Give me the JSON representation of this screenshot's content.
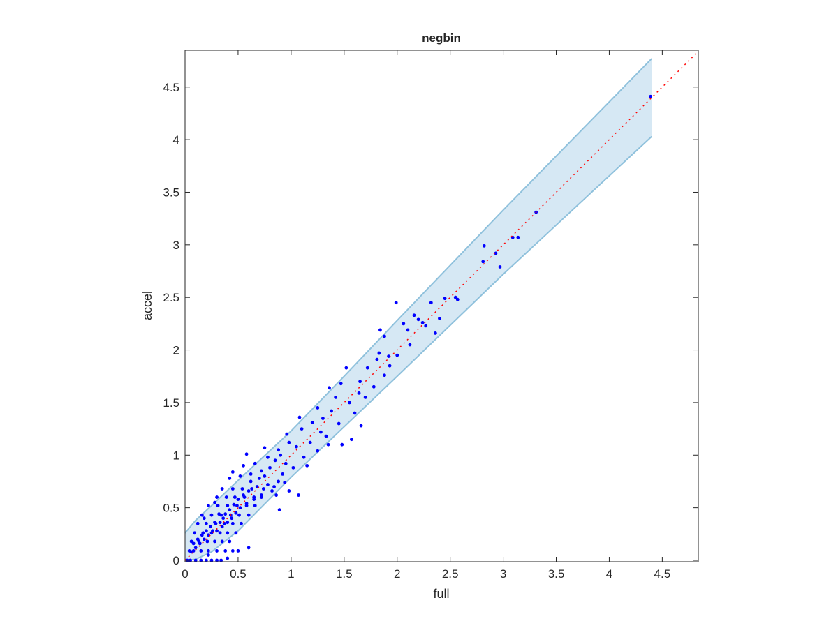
{
  "chart_data": {
    "type": "scatter",
    "title": "negbin",
    "xlabel": "full",
    "ylabel": "accel",
    "xlim": [
      0,
      4.84
    ],
    "ylim": [
      0,
      4.85
    ],
    "xticks": [
      "0",
      "0.5",
      "1",
      "1.5",
      "2",
      "2.5",
      "3",
      "3.5",
      "4",
      "4.5"
    ],
    "yticks": [
      "0",
      "0.5",
      "1",
      "1.5",
      "2",
      "2.5",
      "3",
      "3.5",
      "4",
      "4.5"
    ],
    "grid": false,
    "colors": {
      "points": "#0000ff",
      "band_fill": "#d6e8f4",
      "band_edge": "#8fc1dc",
      "reference_line": "#ff0000"
    },
    "reference_line": {
      "style": "dotted",
      "slope": 1,
      "intercept": 0
    },
    "band": {
      "x": [
        0,
        0.1,
        0.25,
        0.5,
        1,
        1.5,
        2,
        3,
        4.4
      ],
      "upper": [
        0.26,
        0.38,
        0.52,
        0.76,
        1.23,
        1.75,
        2.28,
        3.33,
        4.77
      ],
      "lower": [
        0,
        0.01,
        0.08,
        0.28,
        0.79,
        1.27,
        1.75,
        2.72,
        4.03
      ]
    },
    "points": [
      [
        4.39,
        4.41
      ],
      [
        3.31,
        3.31
      ],
      [
        3.14,
        3.07
      ],
      [
        3.09,
        3.07
      ],
      [
        2.82,
        2.99
      ],
      [
        2.93,
        2.92
      ],
      [
        2.97,
        2.79
      ],
      [
        2.81,
        2.84
      ],
      [
        2.55,
        2.5
      ],
      [
        2.57,
        2.48
      ],
      [
        2.45,
        2.49
      ],
      [
        2.32,
        2.45
      ],
      [
        1.99,
        2.45
      ],
      [
        2.16,
        2.33
      ],
      [
        2.2,
        2.29
      ],
      [
        2.06,
        2.25
      ],
      [
        2.24,
        2.26
      ],
      [
        2.27,
        2.23
      ],
      [
        2.1,
        2.19
      ],
      [
        2.36,
        2.16
      ],
      [
        1.84,
        2.19
      ],
      [
        1.88,
        2.13
      ],
      [
        1.83,
        1.97
      ],
      [
        1.92,
        1.94
      ],
      [
        1.81,
        1.91
      ],
      [
        1.93,
        1.85
      ],
      [
        1.88,
        1.76
      ],
      [
        1.72,
        1.83
      ],
      [
        1.65,
        1.7
      ],
      [
        1.64,
        1.59
      ],
      [
        1.52,
        1.83
      ],
      [
        1.36,
        1.64
      ],
      [
        1.47,
        1.68
      ],
      [
        1.57,
        1.15
      ],
      [
        1.66,
        1.28
      ],
      [
        1.48,
        1.1
      ],
      [
        1.25,
        1.04
      ],
      [
        1.07,
        0.62
      ],
      [
        0.89,
        0.48
      ],
      [
        0.58,
        1.01
      ],
      [
        0.6,
        0.12
      ],
      [
        1.42,
        1.55
      ],
      [
        1.38,
        1.42
      ],
      [
        1.3,
        1.35
      ],
      [
        1.45,
        1.3
      ],
      [
        1.28,
        1.22
      ],
      [
        1.2,
        1.31
      ],
      [
        1.33,
        1.18
      ],
      [
        1.18,
        1.12
      ],
      [
        1.1,
        1.25
      ],
      [
        1.05,
        1.08
      ],
      [
        1.12,
        0.98
      ],
      [
        0.98,
        1.12
      ],
      [
        0.95,
        0.92
      ],
      [
        1.02,
        0.88
      ],
      [
        0.9,
        1.0
      ],
      [
        0.85,
        0.95
      ],
      [
        0.92,
        0.82
      ],
      [
        0.88,
        0.75
      ],
      [
        0.8,
        0.88
      ],
      [
        0.78,
        0.72
      ],
      [
        0.75,
        0.8
      ],
      [
        0.82,
        0.66
      ],
      [
        0.7,
        0.78
      ],
      [
        0.72,
        0.62
      ],
      [
        0.68,
        0.7
      ],
      [
        0.65,
        0.58
      ],
      [
        0.62,
        0.75
      ],
      [
        0.6,
        0.66
      ],
      [
        0.58,
        0.54
      ],
      [
        0.55,
        0.62
      ],
      [
        0.52,
        0.5
      ],
      [
        0.5,
        0.58
      ],
      [
        0.48,
        0.45
      ],
      [
        0.46,
        0.53
      ],
      [
        0.44,
        0.4
      ],
      [
        0.42,
        0.48
      ],
      [
        0.4,
        0.36
      ],
      [
        0.38,
        0.44
      ],
      [
        0.36,
        0.4
      ],
      [
        0.35,
        0.32
      ],
      [
        0.33,
        0.36
      ],
      [
        0.3,
        0.28
      ],
      [
        0.32,
        0.44
      ],
      [
        0.28,
        0.36
      ],
      [
        0.26,
        0.28
      ],
      [
        0.24,
        0.32
      ],
      [
        0.22,
        0.24
      ],
      [
        0.2,
        0.28
      ],
      [
        0.18,
        0.2
      ],
      [
        0.16,
        0.24
      ],
      [
        0.14,
        0.16
      ],
      [
        0.12,
        0.2
      ],
      [
        0.1,
        0.12
      ],
      [
        0.08,
        0.16
      ],
      [
        0.06,
        0.08
      ],
      [
        0.04,
        0.09
      ],
      [
        0.02,
        0.0
      ],
      [
        0.05,
        0.0
      ],
      [
        0.1,
        0.0
      ],
      [
        0.15,
        0.0
      ],
      [
        0.2,
        0.0
      ],
      [
        0.25,
        0.0
      ],
      [
        0.3,
        0.0
      ],
      [
        0.34,
        0.0
      ],
      [
        0.08,
        0.09
      ],
      [
        0.15,
        0.09
      ],
      [
        0.22,
        0.09
      ],
      [
        0.3,
        0.09
      ],
      [
        0.38,
        0.09
      ],
      [
        0.45,
        0.09
      ],
      [
        0.5,
        0.09
      ],
      [
        0.06,
        0.18
      ],
      [
        0.13,
        0.18
      ],
      [
        0.21,
        0.18
      ],
      [
        0.28,
        0.18
      ],
      [
        0.35,
        0.18
      ],
      [
        0.42,
        0.18
      ],
      [
        0.09,
        0.26
      ],
      [
        0.17,
        0.26
      ],
      [
        0.25,
        0.26
      ],
      [
        0.33,
        0.26
      ],
      [
        0.4,
        0.26
      ],
      [
        0.48,
        0.26
      ],
      [
        0.12,
        0.35
      ],
      [
        0.2,
        0.35
      ],
      [
        0.29,
        0.35
      ],
      [
        0.37,
        0.35
      ],
      [
        0.45,
        0.35
      ],
      [
        0.53,
        0.35
      ],
      [
        0.16,
        0.43
      ],
      [
        0.25,
        0.43
      ],
      [
        0.34,
        0.43
      ],
      [
        0.43,
        0.43
      ],
      [
        0.51,
        0.43
      ],
      [
        0.6,
        0.43
      ],
      [
        0.22,
        0.52
      ],
      [
        0.31,
        0.52
      ],
      [
        0.4,
        0.52
      ],
      [
        0.49,
        0.52
      ],
      [
        0.58,
        0.52
      ],
      [
        0.66,
        0.52
      ],
      [
        0.3,
        0.6
      ],
      [
        0.39,
        0.6
      ],
      [
        0.47,
        0.6
      ],
      [
        0.56,
        0.6
      ],
      [
        0.65,
        0.6
      ],
      [
        0.72,
        0.6
      ],
      [
        0.35,
        0.68
      ],
      [
        0.45,
        0.68
      ],
      [
        0.54,
        0.68
      ],
      [
        0.63,
        0.68
      ],
      [
        0.74,
        0.68
      ],
      [
        0.84,
        0.7
      ],
      [
        0.42,
        0.78
      ],
      [
        0.52,
        0.8
      ],
      [
        0.62,
        0.82
      ],
      [
        0.72,
        0.85
      ],
      [
        0.86,
        0.62
      ],
      [
        0.94,
        0.74
      ],
      [
        0.55,
        0.9
      ],
      [
        0.66,
        0.92
      ],
      [
        0.78,
        0.98
      ],
      [
        0.88,
        1.05
      ],
      [
        0.96,
        1.2
      ],
      [
        1.08,
        1.36
      ],
      [
        1.25,
        1.45
      ],
      [
        0.75,
        1.07
      ],
      [
        0.45,
        0.84
      ],
      [
        0.28,
        0.55
      ],
      [
        0.18,
        0.4
      ],
      [
        0.98,
        0.66
      ],
      [
        1.15,
        0.9
      ],
      [
        1.35,
        1.1
      ],
      [
        1.6,
        1.4
      ],
      [
        1.7,
        1.55
      ],
      [
        1.78,
        1.65
      ],
      [
        1.55,
        1.5
      ],
      [
        2.0,
        1.95
      ],
      [
        2.12,
        2.05
      ],
      [
        2.4,
        2.3
      ],
      [
        0.4,
        0.02
      ],
      [
        0.22,
        0.05
      ]
    ]
  }
}
